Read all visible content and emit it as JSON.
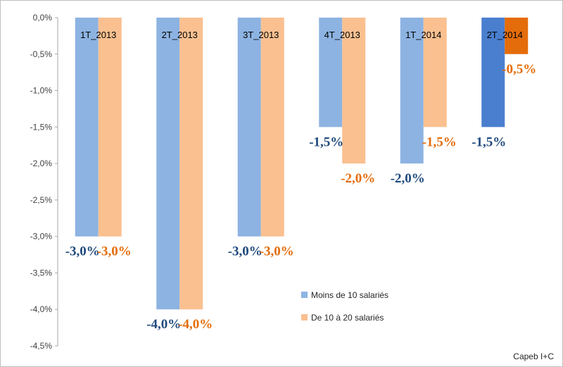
{
  "chart_data": {
    "type": "bar",
    "categories": [
      "1T_2013",
      "2T_2013",
      "3T_2013",
      "4T_2013",
      "1T_2014",
      "2T_2014"
    ],
    "series": [
      {
        "name": "Moins de 10 salariés",
        "values": [
          -3.0,
          -4.0,
          -3.0,
          -1.5,
          -2.0,
          -1.5
        ],
        "labels": [
          "-3,0%",
          "-4,0%",
          "-3,0%",
          "-1,5%",
          "-2,0%",
          "-1,5%"
        ],
        "color": "#8db3e2",
        "highlight_color": "#4a7fcf",
        "label_color": "#1f497d"
      },
      {
        "name": "De 10 à 20 salariés",
        "values": [
          -3.0,
          -4.0,
          -3.0,
          -2.0,
          -1.5,
          -0.5
        ],
        "labels": [
          "-3,0%",
          "-4,0%",
          "-3,0%",
          "-2,0%",
          "-1,5%",
          "-0,5%"
        ],
        "color": "#fac090",
        "highlight_color": "#e46c0a",
        "label_color": "#e46c0a"
      }
    ],
    "highlight_category": "2T_2014",
    "ylim": [
      -4.5,
      0
    ],
    "yticks": [
      "0,0%",
      "-0,5%",
      "-1,0%",
      "-1,5%",
      "-2,0%",
      "-2,5%",
      "-3,0%",
      "-3,5%",
      "-4,0%",
      "-4,5%"
    ],
    "ytick_values": [
      0,
      -0.5,
      -1.0,
      -1.5,
      -2.0,
      -2.5,
      -3.0,
      -3.5,
      -4.0,
      -4.5
    ],
    "title": "",
    "xlabel": "",
    "ylabel": "",
    "legend_position": "bottom-right"
  },
  "source": "Capeb I+C"
}
